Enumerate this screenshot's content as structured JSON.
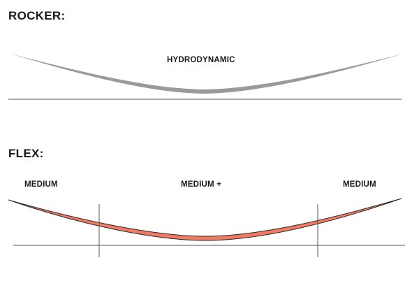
{
  "rocker": {
    "heading": "ROCKER:",
    "profile_label": "HYDRODYNAMIC",
    "curve_color": "#9a9a9d"
  },
  "flex": {
    "heading": "FLEX:",
    "zones": [
      {
        "label": "MEDIUM"
      },
      {
        "label": "MEDIUM +"
      },
      {
        "label": "MEDIUM"
      }
    ],
    "curve_fill_color": "#f07a62",
    "curve_outline_color": "#2a2a2a"
  },
  "baseline_color": "#555555"
}
